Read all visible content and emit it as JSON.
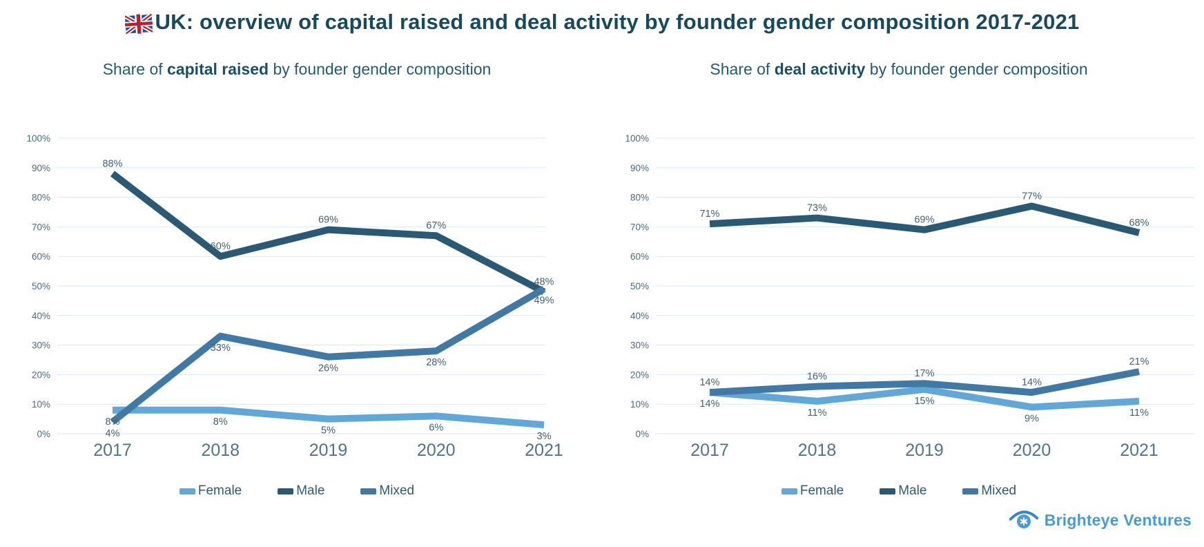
{
  "header": {
    "title": "UK: overview of capital raised and deal activity by founder gender composition 2017-2021",
    "flag_icon": "uk-flag-icon"
  },
  "colors": {
    "title_text": "#19495c",
    "subtitle_text": "#245a72",
    "gridline": "#d9e9f3",
    "axis_tick_text": "#4a6b7c",
    "year_text": "#50748a",
    "value_label_text": "#44606f",
    "legend_text": "#2f5a72",
    "female_series": "#63a7d7",
    "male_series": "#2b5873",
    "mixed_series": "#4279a4",
    "logo_blue": "#4a9bd5"
  },
  "chart_data": [
    {
      "type": "line",
      "title_prefix": "Share of ",
      "title_bold": "capital raised",
      "title_suffix": " by founder gender composition",
      "categories": [
        "2017",
        "2018",
        "2019",
        "2020",
        "2021"
      ],
      "series": [
        {
          "name": "Female",
          "color": "#63a7d7",
          "values": [
            8,
            8,
            5,
            6,
            3
          ],
          "value_labels": [
            "8%",
            "8%",
            "5%",
            "6%",
            "3%"
          ],
          "label_position": "below"
        },
        {
          "name": "Male",
          "color": "#2b5873",
          "values": [
            88,
            60,
            69,
            67,
            48
          ],
          "value_labels": [
            "88%",
            "60%",
            "69%",
            "67%",
            "48%"
          ],
          "label_position": "above"
        },
        {
          "name": "Mixed",
          "color": "#4279a4",
          "values": [
            4,
            33,
            26,
            28,
            49
          ],
          "value_labels": [
            "4%",
            "33%",
            "26%",
            "28%",
            "49%"
          ],
          "label_position": "below"
        }
      ],
      "ylim": [
        0,
        100
      ],
      "yticks": [
        "0%",
        "10%",
        "20%",
        "30%",
        "40%",
        "50%",
        "60%",
        "70%",
        "80%",
        "90%",
        "100%"
      ],
      "grid": true,
      "legend": [
        "Female",
        "Male",
        "Mixed"
      ],
      "legend_position": "bottom"
    },
    {
      "type": "line",
      "title_prefix": "Share of ",
      "title_bold": "deal activity",
      "title_suffix": " by founder gender composition",
      "categories": [
        "2017",
        "2018",
        "2019",
        "2020",
        "2021"
      ],
      "series": [
        {
          "name": "Female",
          "color": "#63a7d7",
          "values": [
            14,
            11,
            15,
            9,
            11
          ],
          "value_labels": [
            "14%",
            "11%",
            "15%",
            "9%",
            "11%"
          ],
          "label_position": "below"
        },
        {
          "name": "Male",
          "color": "#2b5873",
          "values": [
            71,
            73,
            69,
            77,
            68
          ],
          "value_labels": [
            "71%",
            "73%",
            "69%",
            "77%",
            "68%"
          ],
          "label_position": "above"
        },
        {
          "name": "Mixed",
          "color": "#4279a4",
          "values": [
            14,
            16,
            17,
            14,
            21
          ],
          "value_labels": [
            "14%",
            "16%",
            "17%",
            "14%",
            "21%"
          ],
          "label_position": "above"
        }
      ],
      "ylim": [
        0,
        100
      ],
      "yticks": [
        "0%",
        "10%",
        "20%",
        "30%",
        "40%",
        "50%",
        "60%",
        "70%",
        "80%",
        "90%",
        "100%"
      ],
      "grid": true,
      "legend": [
        "Female",
        "Male",
        "Mixed"
      ],
      "legend_position": "bottom"
    }
  ],
  "footer": {
    "logo_text": "Brighteye Ventures",
    "logo_icon": "brighteye-eye-icon"
  }
}
